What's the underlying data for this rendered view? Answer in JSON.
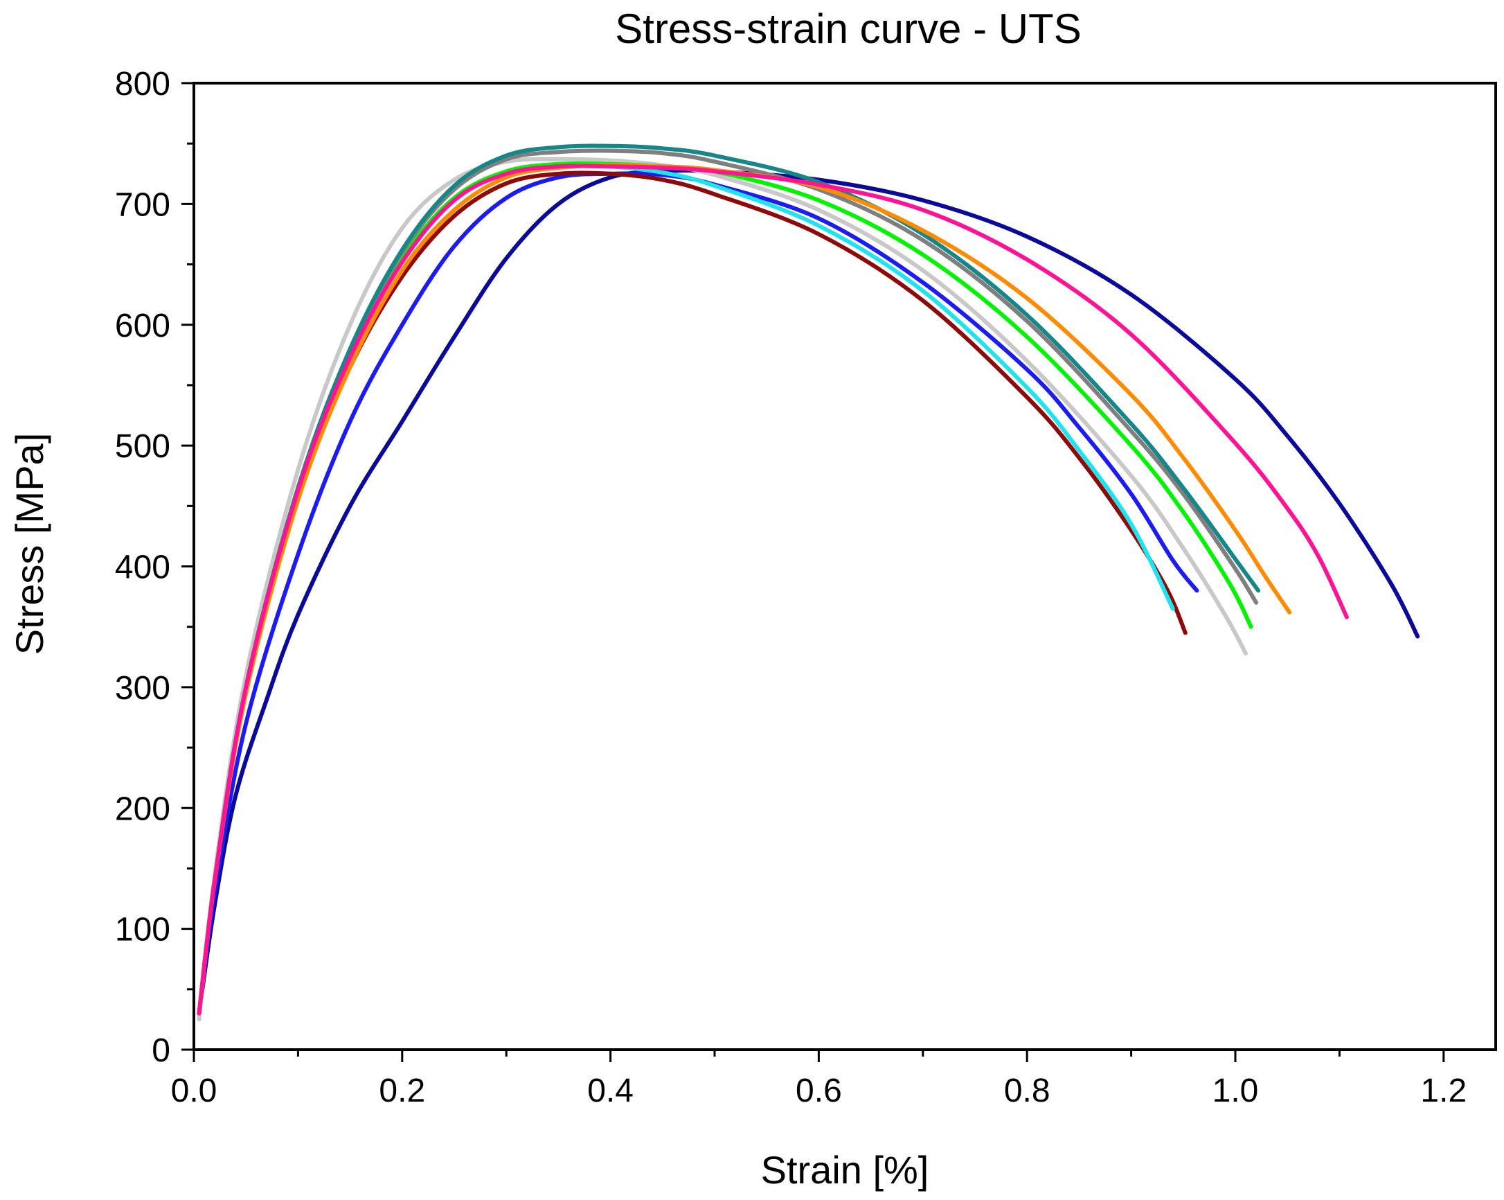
{
  "chart_data": {
    "type": "line",
    "title": "Stress-strain curve - UTS",
    "xlabel": "Strain [%]",
    "ylabel": "Stress [MPa]",
    "xlim": [
      0.0,
      1.25
    ],
    "ylim": [
      0,
      800
    ],
    "xticks": [
      0.0,
      0.2,
      0.4,
      0.6,
      0.8,
      1.0,
      1.2
    ],
    "xtick_labels": [
      "0.0",
      "0.2",
      "0.4",
      "0.6",
      "0.8",
      "1.0",
      "1.2"
    ],
    "yticks": [
      0,
      100,
      200,
      300,
      400,
      500,
      600,
      700,
      800
    ],
    "ytick_labels": [
      "0",
      "100",
      "200",
      "300",
      "400",
      "500",
      "600",
      "700",
      "800"
    ],
    "legend": "none",
    "grid": false,
    "series": [
      {
        "name": "navy",
        "color": "#0a0a96",
        "x": [
          0.005,
          0.02,
          0.04,
          0.07,
          0.1,
          0.15,
          0.2,
          0.25,
          0.3,
          0.35,
          0.4,
          0.45,
          0.5,
          0.6,
          0.7,
          0.8,
          0.9,
          1.0,
          1.05,
          1.1,
          1.15,
          1.175
        ],
        "y": [
          30,
          120,
          210,
          290,
          360,
          450,
          520,
          590,
          655,
          700,
          722,
          727,
          727,
          720,
          703,
          673,
          625,
          555,
          508,
          452,
          385,
          342
        ]
      },
      {
        "name": "blue",
        "color": "#1c1cf0",
        "x": [
          0.005,
          0.02,
          0.05,
          0.1,
          0.15,
          0.2,
          0.25,
          0.3,
          0.35,
          0.4,
          0.45,
          0.5,
          0.6,
          0.7,
          0.8,
          0.85,
          0.9,
          0.94,
          0.963
        ],
        "y": [
          30,
          130,
          270,
          410,
          520,
          600,
          665,
          705,
          722,
          725,
          724,
          716,
          688,
          635,
          563,
          515,
          460,
          405,
          380
        ]
      },
      {
        "name": "dark-red",
        "color": "#8c0a0a",
        "x": [
          0.005,
          0.02,
          0.05,
          0.1,
          0.15,
          0.2,
          0.25,
          0.3,
          0.35,
          0.4,
          0.45,
          0.5,
          0.6,
          0.7,
          0.8,
          0.85,
          0.9,
          0.935,
          0.952
        ],
        "y": [
          30,
          140,
          300,
          460,
          565,
          640,
          690,
          717,
          725,
          725,
          720,
          708,
          675,
          620,
          540,
          490,
          430,
          380,
          345
        ]
      },
      {
        "name": "cyan",
        "color": "#22e2ee",
        "x": [
          0.005,
          0.02,
          0.05,
          0.1,
          0.15,
          0.2,
          0.25,
          0.3,
          0.35,
          0.4,
          0.45,
          0.5,
          0.6,
          0.7,
          0.8,
          0.85,
          0.9,
          0.94
        ],
        "y": [
          30,
          140,
          300,
          465,
          575,
          652,
          703,
          726,
          732,
          731,
          726,
          715,
          682,
          628,
          548,
          496,
          435,
          365
        ]
      },
      {
        "name": "light-gray",
        "color": "#c8c8c8",
        "x": [
          0.005,
          0.02,
          0.05,
          0.1,
          0.15,
          0.2,
          0.25,
          0.3,
          0.35,
          0.4,
          0.45,
          0.5,
          0.6,
          0.7,
          0.8,
          0.9,
          0.95,
          0.99,
          1.01
        ],
        "y": [
          25,
          145,
          310,
          480,
          600,
          680,
          720,
          735,
          737,
          736,
          732,
          724,
          695,
          645,
          570,
          475,
          415,
          360,
          328
        ]
      },
      {
        "name": "green",
        "color": "#00f200",
        "x": [
          0.005,
          0.02,
          0.05,
          0.1,
          0.15,
          0.2,
          0.25,
          0.3,
          0.35,
          0.4,
          0.45,
          0.5,
          0.6,
          0.7,
          0.8,
          0.9,
          0.95,
          0.995,
          1.015
        ],
        "y": [
          30,
          140,
          300,
          465,
          575,
          655,
          705,
          727,
          733,
          733,
          731,
          727,
          703,
          658,
          590,
          500,
          445,
          385,
          350
        ]
      },
      {
        "name": "gray",
        "color": "#7f7f7f",
        "x": [
          0.005,
          0.02,
          0.05,
          0.1,
          0.15,
          0.2,
          0.25,
          0.3,
          0.35,
          0.4,
          0.45,
          0.5,
          0.6,
          0.7,
          0.8,
          0.9,
          0.95,
          1.0,
          1.02
        ],
        "y": [
          30,
          140,
          300,
          465,
          578,
          660,
          712,
          737,
          743,
          744,
          742,
          735,
          712,
          670,
          603,
          512,
          460,
          398,
          370
        ]
      },
      {
        "name": "teal",
        "color": "#168686",
        "x": [
          0.005,
          0.02,
          0.05,
          0.1,
          0.15,
          0.2,
          0.25,
          0.3,
          0.35,
          0.4,
          0.45,
          0.5,
          0.6,
          0.7,
          0.8,
          0.9,
          0.95,
          1.0,
          1.022
        ],
        "y": [
          30,
          140,
          300,
          465,
          580,
          662,
          715,
          740,
          747,
          748,
          746,
          740,
          718,
          675,
          608,
          518,
          465,
          406,
          380
        ]
      },
      {
        "name": "orange",
        "color": "#ff8c00",
        "x": [
          0.005,
          0.02,
          0.05,
          0.1,
          0.15,
          0.2,
          0.25,
          0.3,
          0.35,
          0.4,
          0.45,
          0.5,
          0.6,
          0.7,
          0.8,
          0.9,
          0.95,
          1.0,
          1.03,
          1.052
        ],
        "y": [
          30,
          140,
          295,
          455,
          565,
          645,
          695,
          722,
          730,
          732,
          731,
          728,
          714,
          678,
          622,
          542,
          490,
          430,
          390,
          362
        ]
      },
      {
        "name": "magenta",
        "color": "#ff1493",
        "x": [
          0.005,
          0.02,
          0.05,
          0.1,
          0.15,
          0.2,
          0.25,
          0.3,
          0.35,
          0.4,
          0.45,
          0.5,
          0.6,
          0.7,
          0.8,
          0.9,
          1.0,
          1.05,
          1.08,
          1.107
        ],
        "y": [
          30,
          140,
          300,
          463,
          573,
          652,
          703,
          725,
          731,
          731,
          730,
          727,
          716,
          695,
          654,
          592,
          502,
          448,
          408,
          358
        ]
      }
    ]
  }
}
